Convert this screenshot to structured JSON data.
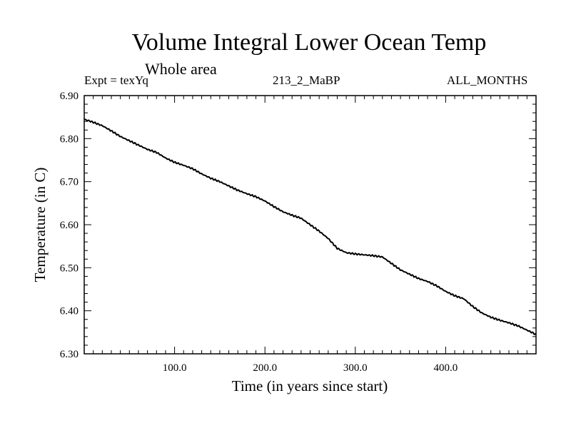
{
  "chart_data": {
    "type": "line",
    "title": "Volume Integral Lower Ocean Temp",
    "subtitle": "Whole area",
    "annotations": {
      "left": "Expt = texYq",
      "center": "213_2_MaBP",
      "right": "ALL_MONTHS"
    },
    "xlabel": "Time (in years since start)",
    "ylabel": "Temperature (in C)",
    "xlim": [
      0,
      500
    ],
    "ylim": [
      6.3,
      6.9
    ],
    "x_ticks": [
      {
        "value": 100,
        "label": "100.0"
      },
      {
        "value": 200,
        "label": "200.0"
      },
      {
        "value": 300,
        "label": "300.0"
      },
      {
        "value": 400,
        "label": "400.0"
      }
    ],
    "y_ticks": [
      {
        "value": 6.3,
        "label": "6.30"
      },
      {
        "value": 6.4,
        "label": "6.40"
      },
      {
        "value": 6.5,
        "label": "6.50"
      },
      {
        "value": 6.6,
        "label": "6.60"
      },
      {
        "value": 6.7,
        "label": "6.70"
      },
      {
        "value": 6.8,
        "label": "6.80"
      },
      {
        "value": 6.9,
        "label": "6.90"
      }
    ],
    "grid": false,
    "series": [
      {
        "x": [
          0,
          10,
          20,
          30,
          40,
          50,
          60,
          70,
          80,
          90,
          100,
          110,
          120,
          130,
          140,
          150,
          160,
          170,
          180,
          190,
          200,
          210,
          220,
          230,
          240,
          250,
          260,
          270,
          280,
          290,
          300,
          310,
          320,
          330,
          340,
          350,
          360,
          370,
          380,
          390,
          400,
          410,
          420,
          430,
          440,
          450,
          460,
          470,
          480,
          490,
          500
        ],
        "y": [
          6.845,
          6.838,
          6.83,
          6.818,
          6.805,
          6.795,
          6.785,
          6.775,
          6.768,
          6.755,
          6.745,
          6.738,
          6.73,
          6.718,
          6.708,
          6.7,
          6.69,
          6.68,
          6.672,
          6.665,
          6.655,
          6.642,
          6.63,
          6.622,
          6.615,
          6.6,
          6.585,
          6.568,
          6.545,
          6.535,
          6.532,
          6.53,
          6.528,
          6.525,
          6.51,
          6.495,
          6.485,
          6.475,
          6.468,
          6.458,
          6.445,
          6.435,
          6.428,
          6.41,
          6.395,
          6.385,
          6.378,
          6.372,
          6.365,
          6.355,
          6.345
        ]
      }
    ]
  }
}
